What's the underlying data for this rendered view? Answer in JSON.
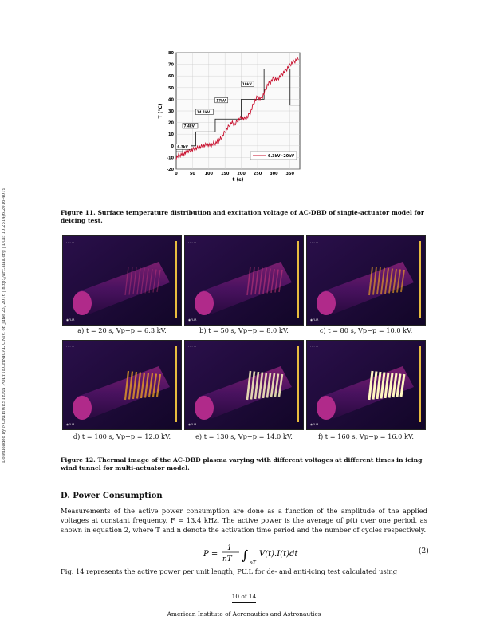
{
  "side_text": "Downloaded by NORTHWESTERN POLYTECHNICAL UNIV. on June 23, 2016 | http://arc.aiaa.org | DOI: 10.2514/6.2016-4019",
  "chart_data": {
    "type": "line",
    "xlabel": "t (s)",
    "ylabel": "T (°C)",
    "xlim": [
      0,
      380
    ],
    "ylim": [
      -20,
      80
    ],
    "xticks": [
      0,
      50,
      100,
      150,
      200,
      250,
      300,
      350
    ],
    "yticks": [
      -20,
      -10,
      0,
      10,
      20,
      30,
      40,
      50,
      60,
      70,
      80
    ],
    "legend": "6.3kV~20kV",
    "legend_position": "bottom-right",
    "series": [
      {
        "name": "temperature",
        "x": [
          0,
          10,
          20,
          28,
          35,
          45,
          55,
          65,
          75,
          85,
          95,
          105,
          115,
          125,
          132,
          140,
          150,
          160,
          170,
          180,
          190,
          200,
          210,
          220,
          230,
          240,
          250,
          260,
          270,
          280,
          290,
          300,
          310,
          320,
          330,
          340,
          350,
          360,
          370,
          378
        ],
        "y": [
          -10,
          -8,
          -7,
          -6,
          -5,
          -4,
          -3,
          -2,
          -1,
          0,
          1,
          0,
          2,
          3,
          5,
          7,
          12,
          16,
          20,
          18,
          22,
          24,
          23,
          25,
          30,
          38,
          42,
          40,
          45,
          52,
          55,
          58,
          57,
          60,
          63,
          66,
          70,
          72,
          74,
          76
        ]
      },
      {
        "name": "voltage",
        "x": [
          0,
          20,
          20,
          60,
          60,
          120,
          120,
          200,
          200,
          270,
          270,
          350,
          350,
          380
        ],
        "y": [
          -5,
          -5,
          0,
          0,
          12,
          12,
          23,
          23,
          40,
          40,
          66,
          66,
          35,
          35
        ]
      }
    ],
    "annotations": [
      "6.3kV",
      "7.4kV",
      "14.1kV",
      "17kV",
      "19kV",
      "20kV"
    ]
  },
  "fig11_caption": "Figure 11.  Surface temperature distribution and excitation voltage of AC-DBD of single-actuator model for deicing test.",
  "thermal_images": [
    {
      "label": "a)  t = 20 s,  Vp−p = 6.3 kV.",
      "intensity": 0.15
    },
    {
      "label": "b)  t = 50 s,  Vp−p = 8.0 kV.",
      "intensity": 0.3
    },
    {
      "label": "c)  t = 80 s,  Vp−p = 10.0 kV.",
      "intensity": 0.45
    },
    {
      "label": "d)  t = 100 s,  Vp−p = 12.0 kV.",
      "intensity": 0.6
    },
    {
      "label": "e)  t = 130 s,  Vp−p = 14.0 kV.",
      "intensity": 0.8
    },
    {
      "label": "f)  t = 160 s,  Vp−p = 16.0 kV.",
      "intensity": 1.0
    }
  ],
  "fig12_caption": "Figure 12.  Thermal image of the AC-DBD plasma varying with different voltages at different times in icing wind tunnel for multi-actuator model.",
  "section_title": "D.   Power Consumption",
  "para1": "Measurements of the active power consumption are done as a function of the amplitude of the applied voltages at constant frequency, F = 13.4 kHz. The active power is the average of p(t) over one period, as shown in equation 2, where T and n denote the activation time period and the number of cycles respectively.",
  "equation": "P = (1 / nT) ∫nT V(t).I(t) dt",
  "equation_number": "(2)",
  "para2": "Fig.  14 represents the active power per unit length, PU.L for de- and anti-icing test calculated using",
  "page_number": "10 of 14",
  "footer": "American Institute of Aeronautics and Astronautics"
}
